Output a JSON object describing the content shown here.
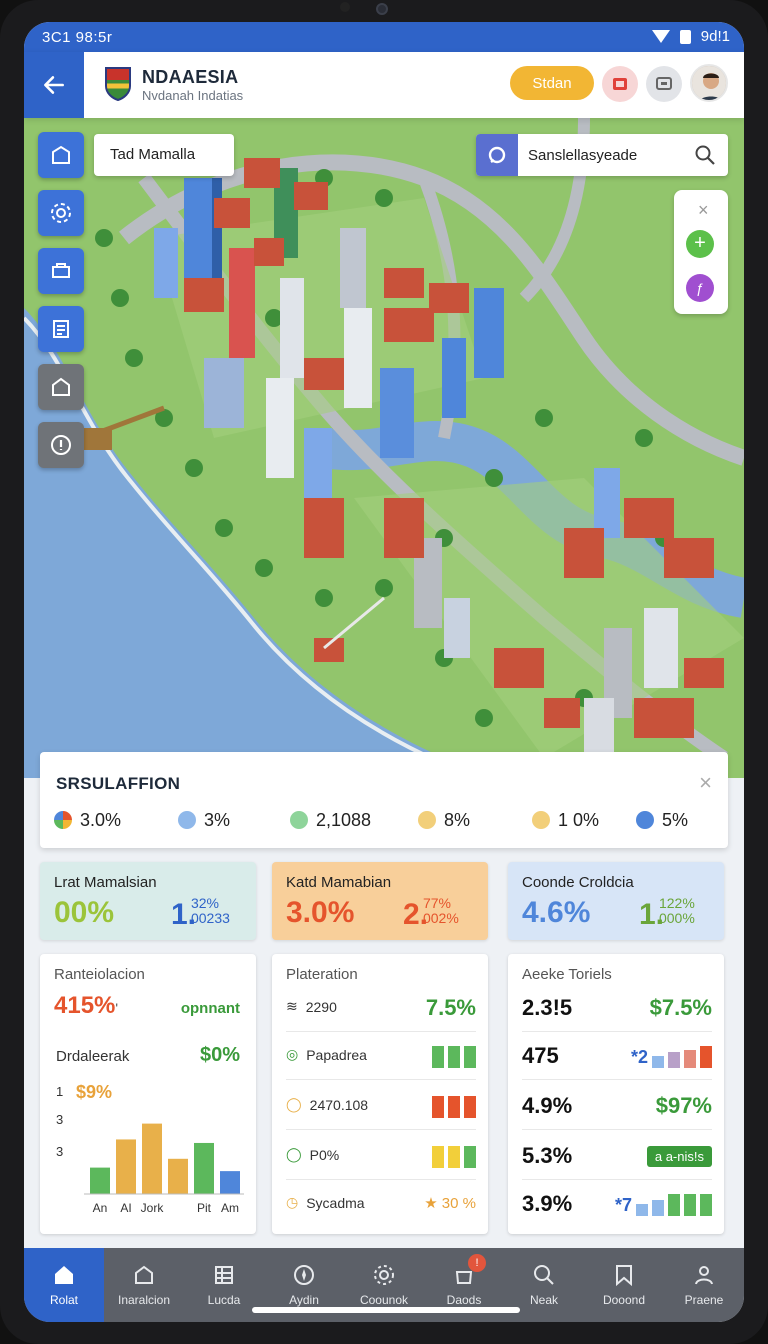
{
  "status_bar": {
    "time": "3C1 98:5r",
    "right_text": "9d!1"
  },
  "header": {
    "title": "NDAAESIA",
    "subtitle": "Nvdanah Indatias",
    "start_label": "Stdan"
  },
  "map": {
    "location_chip": "Tad Mamalla",
    "search_value": "Sanslellasyeade",
    "zoom_close": "×",
    "zoom_plus": "+",
    "zoom_pin": "ƒ"
  },
  "simulation": {
    "title": "SRSULAFFION",
    "close": "×",
    "items": [
      {
        "value": "3.0%",
        "color": "#e8a23a"
      },
      {
        "value": "3%",
        "color": "#8fb8ea"
      },
      {
        "value": "2,1088",
        "color": "#8ed49a"
      },
      {
        "value": "8%",
        "color": "#f2cf7a"
      },
      {
        "value": "1 0%",
        "color": "#f2cf7a"
      },
      {
        "value": "5%",
        "color": "#4f86da"
      }
    ]
  },
  "stats": [
    {
      "label": "Lrat Mamalsian",
      "big": "00%",
      "small": "1.",
      "sup1": "32%",
      "sup2": "00233",
      "bg": "#d9ecea",
      "big_color": "#9bc43a",
      "small_color": "#2f63c8"
    },
    {
      "label": "Katd Mamabian",
      "big": "3.0%",
      "small": "2.",
      "sup1": "77%",
      "sup2": "002%",
      "bg": "#f8cf9a",
      "big_color": "#e5542c",
      "small_color": "#e5542c"
    },
    {
      "label": "Coonde Croldcia",
      "big": "4.6%",
      "small": "1.",
      "sup1": "122%",
      "sup2": "000%",
      "bg": "#d7e5f7",
      "big_color": "#4f86da",
      "small_color": "#6aa53a"
    }
  ],
  "panel_left": {
    "title": "Ranteiolacion",
    "value1": "415%",
    "tick": "'",
    "note": "opnnant",
    "row2_label": "Drdaleerak",
    "row2_value": "$0%",
    "chart_labels": {
      "n1": "1",
      "v": "$9%",
      "n2": "3",
      "n3": "3"
    }
  },
  "panel_mid": {
    "title": "Plateration",
    "rows": [
      {
        "label": "2290",
        "value": "7.5%"
      },
      {
        "label": "Papadrea"
      },
      {
        "label": "2470.108"
      },
      {
        "label": "P0%"
      },
      {
        "label": "Sycadma",
        "value": "★ 30 %"
      }
    ]
  },
  "panel_right": {
    "title": "Aeeke Toriels",
    "rows": [
      {
        "big": "2.3!5",
        "value": "$7.5%"
      },
      {
        "big": "475",
        "value": "*2"
      },
      {
        "big": "4.9%",
        "value": "$97%"
      },
      {
        "big": "5.3%",
        "pill": "a a-nis!s"
      },
      {
        "big": "3.9%",
        "value": "*7"
      }
    ]
  },
  "chart_data": {
    "type": "bar",
    "categories": [
      "An",
      "AI",
      "Jork",
      "",
      "Pit",
      "Am"
    ],
    "values": [
      30,
      62,
      80,
      40,
      58,
      26
    ],
    "colors": [
      "#5cb85c",
      "#e8b04a",
      "#e8b04a",
      "#e8b04a",
      "#5cb85c",
      "#4f86da"
    ]
  },
  "nav": [
    {
      "label": "Rolat",
      "icon": "home-icon"
    },
    {
      "label": "Inaralcion",
      "icon": "house-outline-icon"
    },
    {
      "label": "Lucda",
      "icon": "grid-icon"
    },
    {
      "label": "Aydin",
      "icon": "compass-icon"
    },
    {
      "label": "Coounok",
      "icon": "gear-icon"
    },
    {
      "label": "Daods",
      "icon": "bag-icon",
      "badge": "!"
    },
    {
      "label": "Neak",
      "icon": "search-icon"
    },
    {
      "label": "Dooond",
      "icon": "bookmark-icon"
    },
    {
      "label": "Praene",
      "icon": "user-icon"
    }
  ]
}
